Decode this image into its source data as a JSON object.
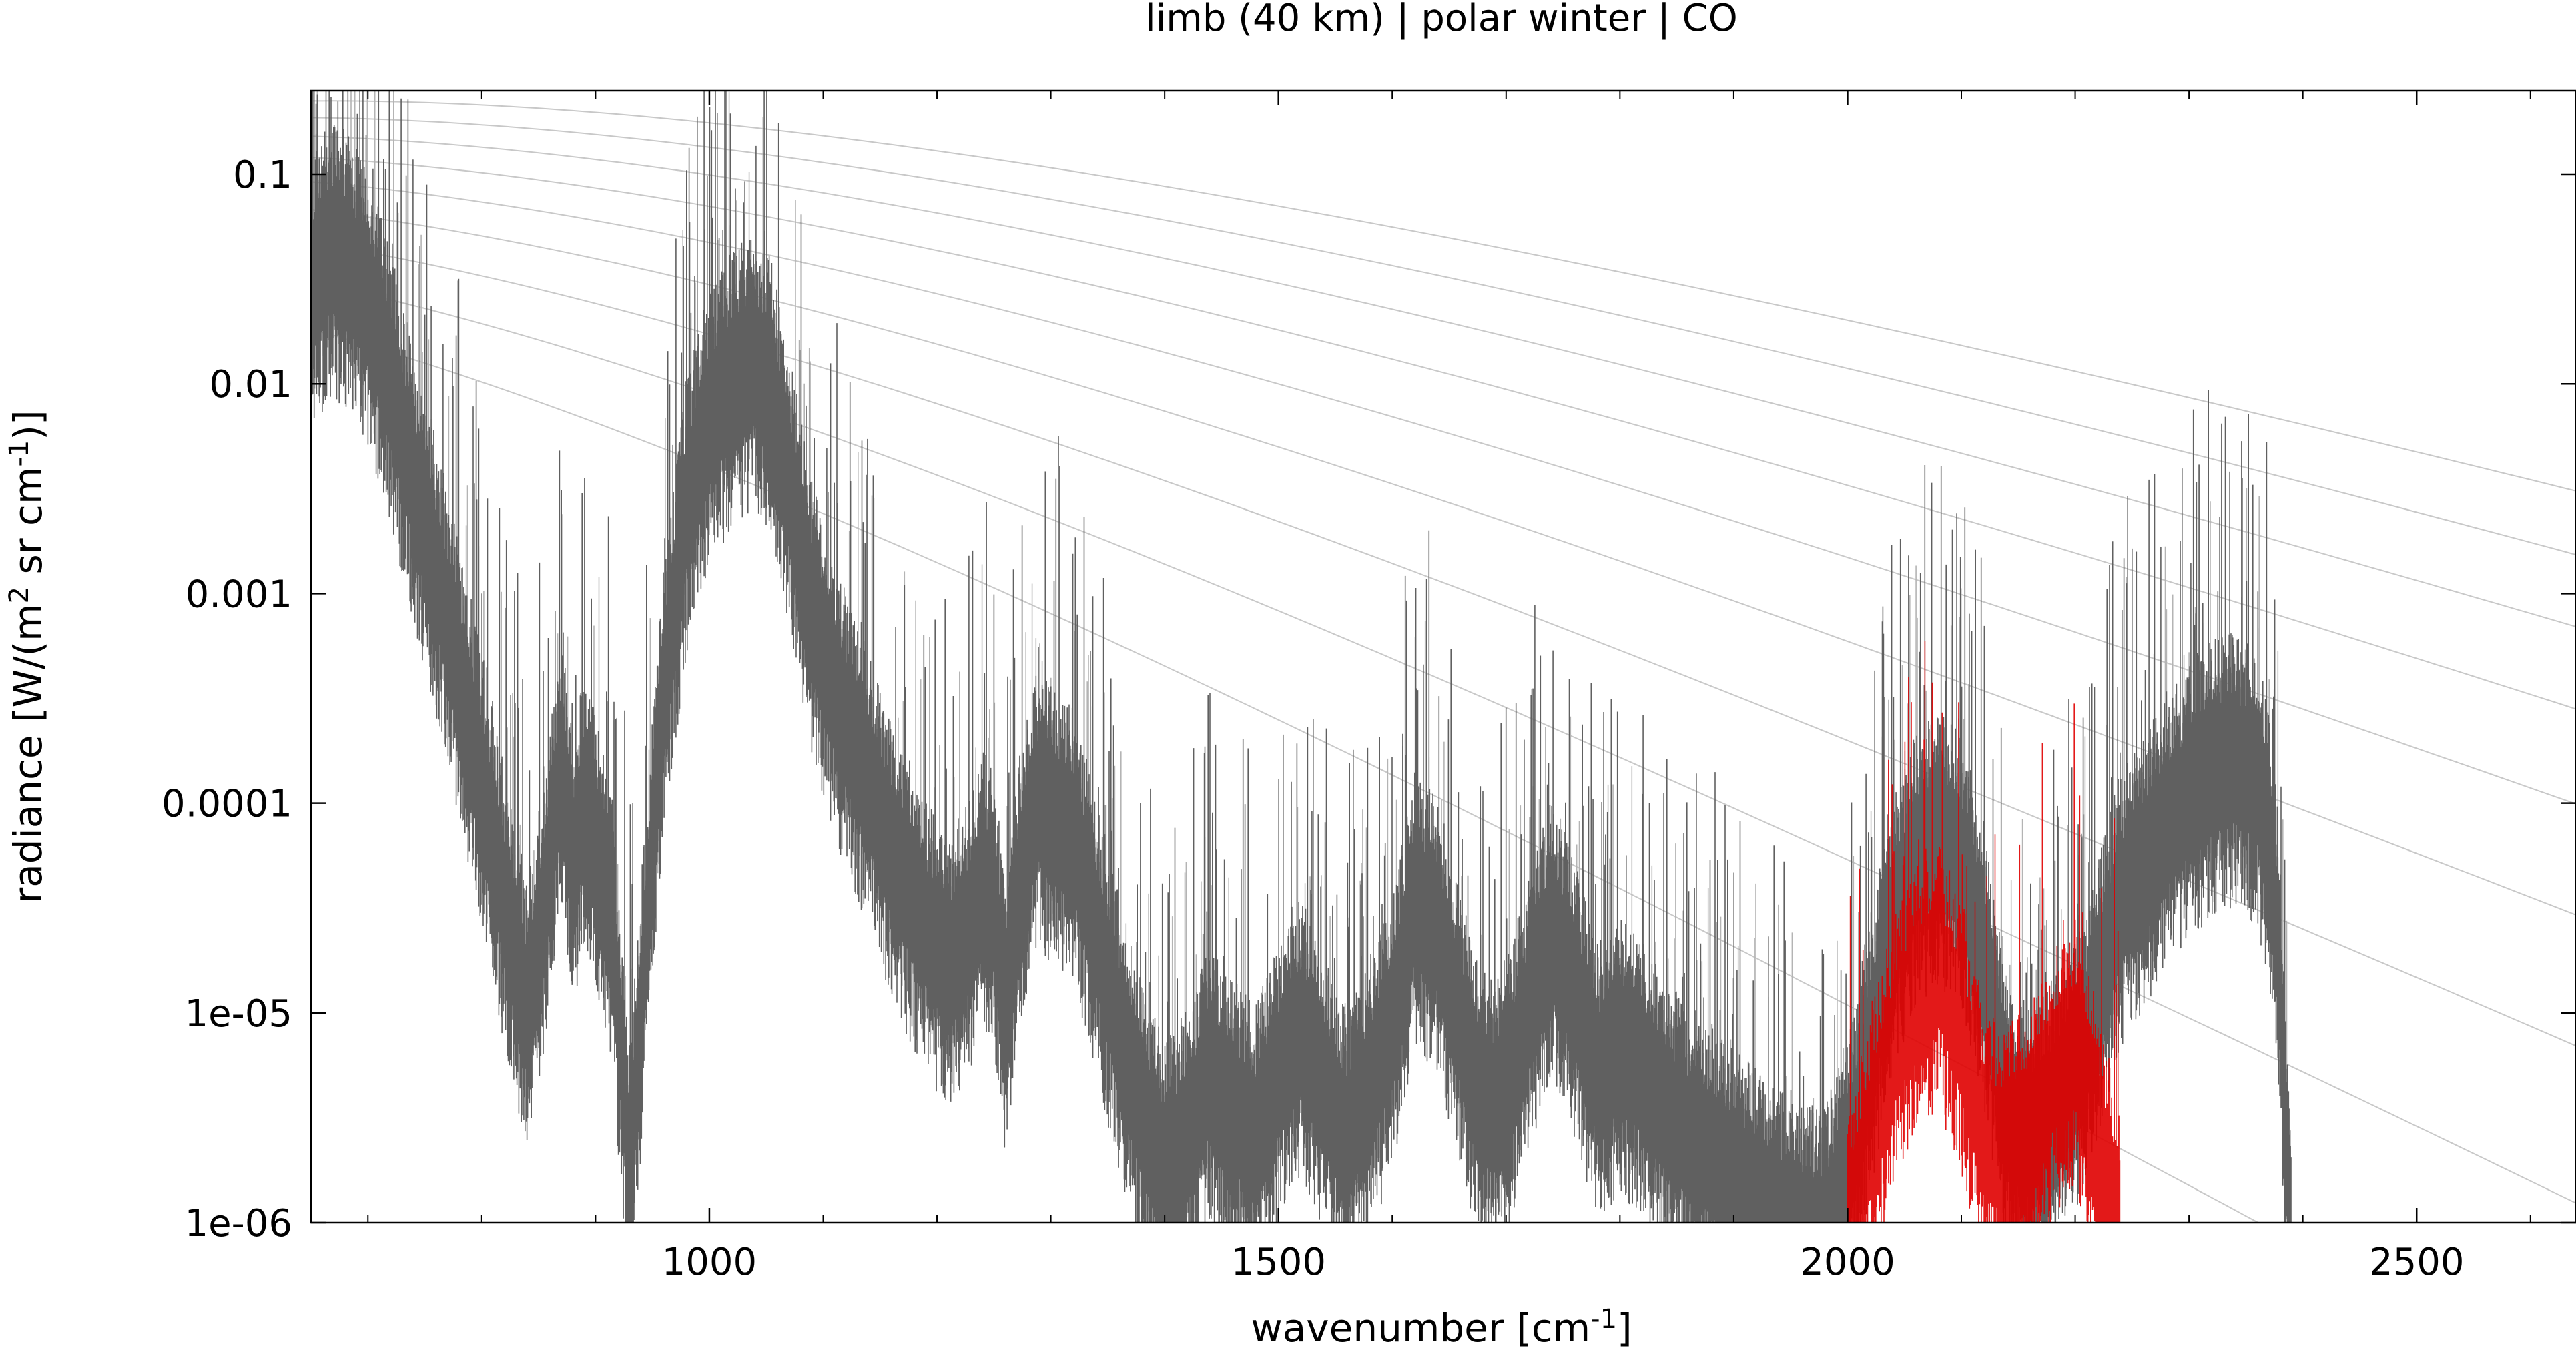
{
  "chart_data": {
    "type": "line",
    "title": "limb (40 km) | polar winter | CO",
    "xlabel": "wavenumber [cm^-1]",
    "xlabel_parts": {
      "main": "wavenumber [cm",
      "sup": "-1",
      "end": "]"
    },
    "ylabel": "radiance [W/(m^2 sr cm^-1)]",
    "ylabel_parts": {
      "a": "radiance [W/(m",
      "sup1": "2",
      "b": " sr cm",
      "sup2": "-1",
      "c": ")]"
    },
    "xlim": [
      650,
      2640
    ],
    "ylim": [
      1e-06,
      0.25
    ],
    "yscale": "log",
    "grid": false,
    "x_ticks": [
      1000,
      1500,
      2000,
      2500
    ],
    "x_tick_labels": [
      "1000",
      "1500",
      "2000",
      "2500"
    ],
    "y_ticks": [
      0.1,
      0.01,
      0.001,
      0.0001,
      1e-05,
      1e-06
    ],
    "y_tick_labels": [
      "0.1",
      "0.01",
      "0.001",
      "0.0001",
      "1e-05",
      "1e-06"
    ],
    "colors": {
      "total_spectrum": "#606060",
      "reference_spectrum": "#b4b4b4",
      "co_contribution": "#e00000",
      "planck_curves": "#c8c8c8"
    },
    "planck_temperatures_K": [
      180,
      200,
      220,
      240,
      260,
      280,
      300,
      320,
      340
    ],
    "series": [
      {
        "key": "total",
        "x": [
          650,
          665,
          680,
          700,
          720,
          740,
          760,
          780,
          800,
          820,
          840,
          860,
          870,
          880,
          890,
          900,
          915,
          930,
          945,
          960,
          980,
          1000,
          1020,
          1040,
          1055,
          1070,
          1090,
          1110,
          1130,
          1150,
          1170,
          1190,
          1210,
          1230,
          1240,
          1250,
          1260,
          1275,
          1290,
          1300,
          1320,
          1340,
          1360,
          1380,
          1400,
          1420,
          1440,
          1460,
          1480,
          1500,
          1520,
          1540,
          1560,
          1580,
          1600,
          1620,
          1640,
          1660,
          1680,
          1700,
          1720,
          1740,
          1760,
          1780,
          1800,
          1820,
          1840,
          1860,
          1880,
          1900,
          1920,
          1940,
          1960,
          1980,
          2000,
          2020,
          2040,
          2060,
          2080,
          2100,
          2120,
          2140,
          2160,
          2180,
          2200,
          2220,
          2240,
          2260,
          2280,
          2300,
          2320,
          2340,
          2360,
          2370,
          2380,
          2385,
          2390
        ],
        "y": [
          0.03,
          0.05,
          0.045,
          0.03,
          0.012,
          0.004,
          0.0015,
          0.0005,
          0.00015,
          4e-05,
          1.2e-05,
          6e-05,
          0.0002,
          6e-05,
          0.00012,
          8e-05,
          3e-05,
          2e-06,
          3e-05,
          0.0004,
          0.003,
          0.008,
          0.012,
          0.015,
          0.011,
          0.004,
          0.001,
          0.0004,
          0.0002,
          0.0001,
          5e-05,
          3e-05,
          2e-05,
          3e-05,
          5e-05,
          4e-05,
          1.2e-05,
          6e-05,
          0.00012,
          0.0001,
          8e-05,
          3e-05,
          1e-05,
          4e-06,
          2e-06,
          3e-06,
          6e-06,
          4e-06,
          3e-06,
          6e-06,
          1e-05,
          5e-06,
          3e-06,
          5e-06,
          1e-05,
          4e-05,
          3e-05,
          1e-05,
          4e-06,
          5e-06,
          1.2e-05,
          3e-05,
          1.5e-05,
          6e-06,
          8e-06,
          6e-06,
          4e-06,
          3e-06,
          2.5e-06,
          2e-06,
          1.5e-06,
          1.2e-06,
          1e-06,
          1e-06,
          2e-06,
          8e-06,
          3e-05,
          6e-05,
          8e-05,
          6e-05,
          2e-05,
          4e-06,
          3e-06,
          4e-06,
          6e-06,
          1.5e-05,
          4e-05,
          6e-05,
          9e-05,
          0.00013,
          0.00017,
          0.00018,
          0.00015,
          8e-05,
          2e-05,
          3e-06,
          1e-06
        ]
      },
      {
        "key": "co",
        "x": [
          2000,
          2020,
          2040,
          2060,
          2080,
          2100,
          2120,
          2140,
          2160,
          2180,
          2200,
          2220,
          2240
        ],
        "y": [
          1e-06,
          3e-06,
          8e-06,
          1.5e-05,
          2e-05,
          1e-05,
          3e-06,
          2.5e-06,
          3e-06,
          6e-06,
          8e-06,
          3e-06,
          1e-06
        ]
      }
    ]
  }
}
